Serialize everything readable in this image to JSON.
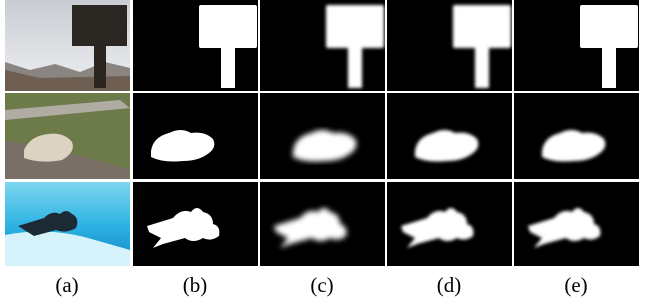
{
  "figure": {
    "labels": [
      "(a)",
      "(b)",
      "(c)",
      "(d)",
      "(e)"
    ]
  }
}
